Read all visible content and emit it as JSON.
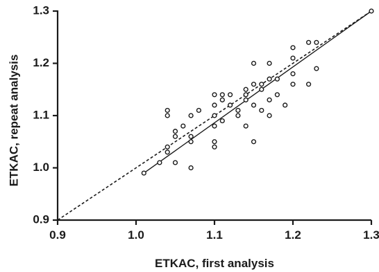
{
  "chart_data": {
    "type": "scatter",
    "title": "",
    "xlabel": "ETKAC, first analysis",
    "ylabel": "ETKAC, repeat analysis",
    "xlim": [
      0.9,
      1.3
    ],
    "ylim": [
      0.9,
      1.3
    ],
    "xticks": [
      "0.9",
      "1.0",
      "1.1",
      "1.2",
      "1.3"
    ],
    "yticks": [
      "0.9",
      "1.0",
      "1.1",
      "1.2",
      "1.3"
    ],
    "grid": false,
    "legend": "none",
    "marker": "open-circle",
    "points": [
      [
        1.01,
        0.99
      ],
      [
        1.03,
        1.01
      ],
      [
        1.04,
        1.03
      ],
      [
        1.04,
        1.04
      ],
      [
        1.04,
        1.1
      ],
      [
        1.04,
        1.11
      ],
      [
        1.05,
        1.01
      ],
      [
        1.05,
        1.06
      ],
      [
        1.05,
        1.07
      ],
      [
        1.06,
        1.08
      ],
      [
        1.07,
        1.0
      ],
      [
        1.07,
        1.05
      ],
      [
        1.07,
        1.06
      ],
      [
        1.07,
        1.1
      ],
      [
        1.08,
        1.11
      ],
      [
        1.1,
        1.04
      ],
      [
        1.1,
        1.05
      ],
      [
        1.1,
        1.08
      ],
      [
        1.1,
        1.1
      ],
      [
        1.1,
        1.12
      ],
      [
        1.1,
        1.14
      ],
      [
        1.11,
        1.09
      ],
      [
        1.11,
        1.13
      ],
      [
        1.11,
        1.14
      ],
      [
        1.12,
        1.12
      ],
      [
        1.12,
        1.14
      ],
      [
        1.13,
        1.1
      ],
      [
        1.13,
        1.11
      ],
      [
        1.14,
        1.08
      ],
      [
        1.14,
        1.13
      ],
      [
        1.14,
        1.14
      ],
      [
        1.14,
        1.15
      ],
      [
        1.15,
        1.05
      ],
      [
        1.15,
        1.12
      ],
      [
        1.15,
        1.16
      ],
      [
        1.15,
        1.2
      ],
      [
        1.16,
        1.11
      ],
      [
        1.16,
        1.15
      ],
      [
        1.16,
        1.16
      ],
      [
        1.17,
        1.1
      ],
      [
        1.17,
        1.13
      ],
      [
        1.17,
        1.17
      ],
      [
        1.17,
        1.2
      ],
      [
        1.18,
        1.14
      ],
      [
        1.18,
        1.17
      ],
      [
        1.19,
        1.12
      ],
      [
        1.2,
        1.16
      ],
      [
        1.2,
        1.18
      ],
      [
        1.2,
        1.21
      ],
      [
        1.2,
        1.23
      ],
      [
        1.22,
        1.16
      ],
      [
        1.22,
        1.24
      ],
      [
        1.23,
        1.19
      ],
      [
        1.23,
        1.24
      ],
      [
        1.3,
        1.3
      ]
    ],
    "lines": [
      {
        "style": "solid",
        "x": [
          1.01,
          1.3
        ],
        "y": [
          0.99,
          1.3
        ]
      },
      {
        "style": "dashed",
        "x": [
          0.9,
          1.3
        ],
        "y": [
          0.9,
          1.3
        ]
      }
    ]
  }
}
